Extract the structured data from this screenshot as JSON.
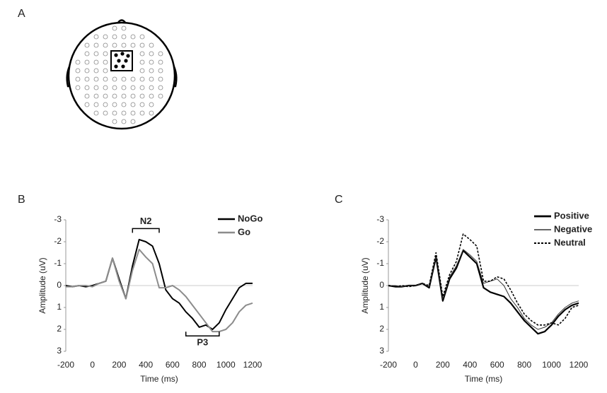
{
  "panel_labels": [
    "A",
    "B",
    "C"
  ],
  "chart_data": [
    {
      "type": "line",
      "xlabel": "Time (ms)",
      "ylabel": "Amplitude (uV)",
      "x": [
        -200,
        -150,
        -100,
        -50,
        0,
        50,
        100,
        150,
        200,
        250,
        300,
        350,
        400,
        450,
        500,
        550,
        600,
        650,
        700,
        750,
        800,
        850,
        900,
        950,
        1000,
        1050,
        1100,
        1150,
        1200
      ],
      "xlim": [
        -200,
        1200
      ],
      "xticks": [
        -200,
        0,
        200,
        400,
        600,
        800,
        1000,
        1200
      ],
      "ylim": [
        -3,
        3
      ],
      "yticks": [
        -3,
        -2,
        -1,
        0,
        1,
        2,
        3
      ],
      "y_inverted": true,
      "legend": "upper right",
      "series": [
        {
          "name": "NoGo",
          "color": "#000000",
          "width": 2,
          "dash": false,
          "values": [
            0,
            0.05,
            0,
            0.05,
            0,
            -0.1,
            -0.2,
            -1.25,
            -0.3,
            0.6,
            -0.9,
            -2.1,
            -2.0,
            -1.8,
            -1.0,
            0.2,
            0.6,
            0.8,
            1.2,
            1.5,
            1.9,
            1.8,
            2.0,
            1.7,
            1.1,
            0.6,
            0.1,
            -0.1,
            -0.1
          ]
        },
        {
          "name": "Go",
          "color": "#8c8c8c",
          "width": 2,
          "dash": false,
          "values": [
            0.05,
            0.05,
            0,
            0,
            0.05,
            -0.1,
            -0.2,
            -1.25,
            -0.2,
            0.6,
            -0.7,
            -1.65,
            -1.3,
            -1.0,
            0.1,
            0.1,
            0.0,
            0.2,
            0.5,
            0.9,
            1.3,
            1.7,
            2.1,
            2.1,
            2.0,
            1.7,
            1.2,
            0.9,
            0.8
          ]
        }
      ],
      "annotations": [
        {
          "text": "N2",
          "x": [
            300,
            500
          ],
          "y": -2.6
        },
        {
          "text": "P3",
          "x": [
            700,
            950
          ],
          "y": 2.3
        }
      ]
    },
    {
      "type": "line",
      "xlabel": "Time (ms)",
      "ylabel": "Amplitude (uV)",
      "x": [
        -200,
        -150,
        -100,
        -50,
        0,
        50,
        100,
        150,
        200,
        250,
        300,
        350,
        400,
        450,
        500,
        550,
        600,
        650,
        700,
        750,
        800,
        850,
        900,
        950,
        1000,
        1050,
        1100,
        1150,
        1200
      ],
      "xlim": [
        -200,
        1200
      ],
      "xticks": [
        -200,
        0,
        200,
        400,
        600,
        800,
        1000,
        1200
      ],
      "ylim": [
        -3,
        3
      ],
      "yticks": [
        -3,
        -2,
        -1,
        0,
        1,
        2,
        3
      ],
      "y_inverted": true,
      "legend": "upper right",
      "series": [
        {
          "name": "Positive",
          "color": "#000000",
          "width": 2.2,
          "dash": false,
          "values": [
            0,
            0.05,
            0.05,
            0,
            0,
            -0.1,
            0.1,
            -1.3,
            0.7,
            -0.3,
            -0.8,
            -1.6,
            -1.3,
            -1.0,
            0.1,
            0.3,
            0.4,
            0.5,
            0.8,
            1.2,
            1.6,
            1.9,
            2.2,
            2.1,
            1.8,
            1.4,
            1.1,
            0.9,
            0.8
          ]
        },
        {
          "name": "Negative",
          "color": "#333333",
          "width": 1,
          "dash": false,
          "values": [
            0,
            0,
            0.05,
            0,
            0,
            -0.1,
            0.05,
            -1.35,
            0.6,
            -0.4,
            -0.9,
            -1.65,
            -1.4,
            -1.1,
            -0.1,
            -0.2,
            -0.3,
            0.0,
            0.6,
            1.0,
            1.5,
            1.8,
            2.0,
            1.9,
            1.7,
            1.3,
            1.0,
            0.8,
            0.7
          ]
        },
        {
          "name": "Neutral",
          "color": "#000000",
          "width": 1.6,
          "dash": true,
          "values": [
            0,
            0.05,
            0,
            0.05,
            0,
            -0.1,
            0,
            -1.5,
            0.5,
            -0.5,
            -1.1,
            -2.35,
            -2.1,
            -1.8,
            -0.2,
            -0.2,
            -0.4,
            -0.3,
            0.2,
            0.8,
            1.3,
            1.6,
            1.8,
            1.8,
            1.7,
            1.8,
            1.5,
            1.0,
            0.9
          ]
        }
      ]
    }
  ]
}
